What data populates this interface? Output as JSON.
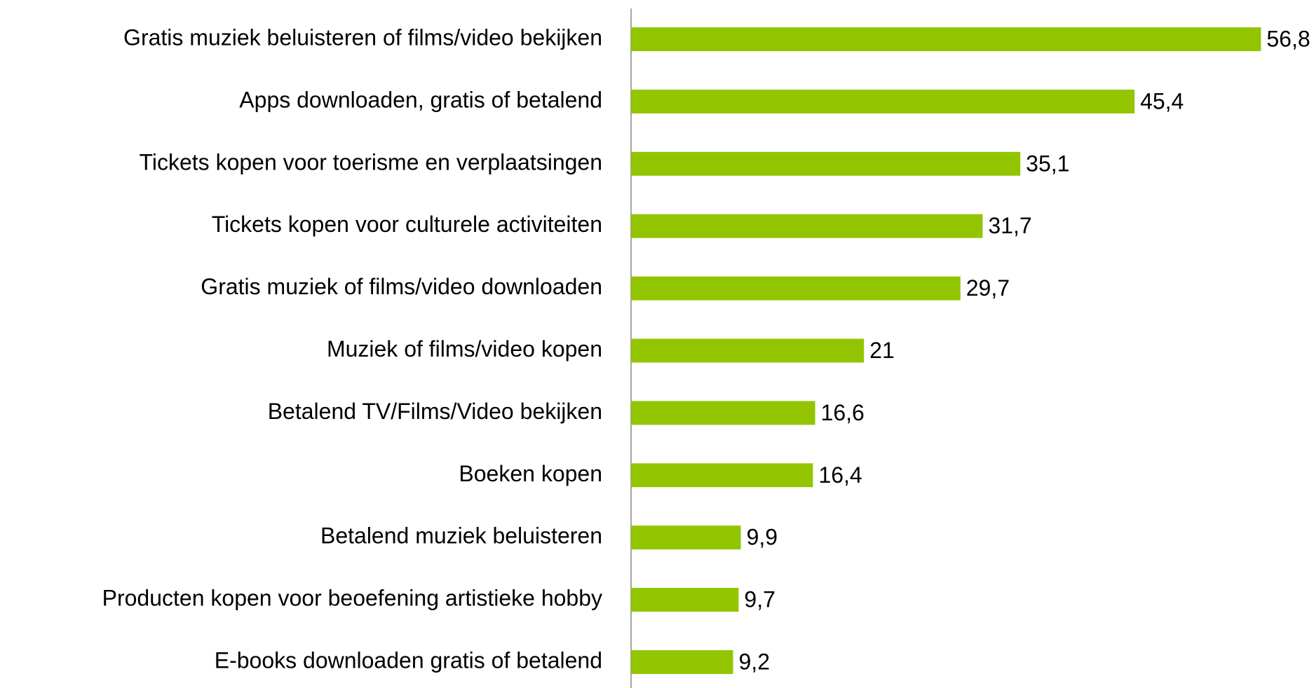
{
  "chart_data": {
    "type": "bar",
    "orientation": "horizontal",
    "categories": [
      "Gratis muziek beluisteren of films/video bekijken",
      "Apps downloaden, gratis of betalend",
      "Tickets kopen voor toerisme en verplaatsingen",
      "Tickets kopen voor culturele activiteiten",
      "Gratis muziek of films/video downloaden",
      "Muziek of films/video kopen",
      "Betalend TV/Films/Video bekijken",
      "Boeken kopen",
      "Betalend muziek beluisteren",
      "Producten kopen voor beoefening artistieke hobby",
      "E-books downloaden gratis of betalend"
    ],
    "values": [
      56.8,
      45.4,
      35.1,
      31.7,
      29.7,
      21,
      16.6,
      16.4,
      9.9,
      9.7,
      9.2
    ],
    "value_labels": [
      "56,8",
      "45,4",
      "35,1",
      "31,7",
      "29,7",
      "21",
      "16,6",
      "16,4",
      "9,9",
      "9,7",
      "9,2"
    ],
    "color": "#92c500",
    "xlim": [
      0,
      60
    ]
  }
}
